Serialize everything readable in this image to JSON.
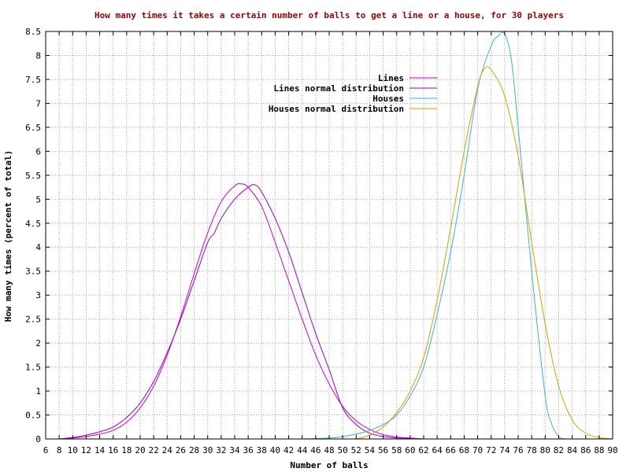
{
  "chart_data": {
    "type": "line",
    "title": "How many times it takes a certain number of balls to get a line or a house, for 30 players",
    "xlabel": "Number of balls",
    "ylabel": "How many times (percent of total)",
    "xlim": [
      6,
      90
    ],
    "ylim": [
      0,
      8.5
    ],
    "xticks": [
      6,
      8,
      10,
      12,
      14,
      16,
      18,
      20,
      22,
      24,
      26,
      28,
      30,
      32,
      34,
      36,
      38,
      40,
      42,
      44,
      46,
      48,
      50,
      52,
      54,
      56,
      58,
      60,
      62,
      64,
      66,
      68,
      70,
      72,
      74,
      76,
      78,
      80,
      82,
      84,
      86,
      88,
      90
    ],
    "yticks": [
      "0",
      "0.5",
      "1",
      "1.5",
      "2",
      "2.5",
      "3",
      "3.5",
      "4",
      "4.5",
      "5",
      "5.5",
      "6",
      "6.5",
      "7",
      "7.5",
      "8",
      "8.5"
    ],
    "grid": true,
    "legend_position": "top-right",
    "colors": {
      "title": "#990000",
      "grid": "#a0a0a0",
      "lines": "#cc00cc",
      "lines_normal": "#9400d3",
      "houses": "#40b0d0",
      "houses_normal": "#d4a000"
    },
    "series": [
      {
        "name": "Lines",
        "color": "#cc00cc",
        "x": [
          8,
          10,
          12,
          14,
          16,
          18,
          20,
          22,
          24,
          26,
          28,
          30,
          32,
          34,
          35,
          36,
          38,
          40,
          42,
          44,
          46,
          48,
          50,
          52,
          54,
          56,
          58,
          60,
          62
        ],
        "y": [
          0,
          0.02,
          0.05,
          0.1,
          0.18,
          0.35,
          0.65,
          1.1,
          1.75,
          2.55,
          3.45,
          4.3,
          4.95,
          5.28,
          5.32,
          5.25,
          4.85,
          4.1,
          3.3,
          2.5,
          1.75,
          1.15,
          0.68,
          0.38,
          0.2,
          0.09,
          0.04,
          0.02,
          0
        ]
      },
      {
        "name": "Lines normal distribution",
        "color": "#9400d3",
        "x": [
          8,
          10,
          12,
          14,
          16,
          18,
          20,
          22,
          24,
          26,
          28,
          30,
          31,
          32,
          34,
          36,
          37,
          38,
          40,
          42,
          44,
          46,
          48,
          50,
          52,
          54,
          56,
          58,
          60,
          62
        ],
        "y": [
          0,
          0.03,
          0.08,
          0.15,
          0.25,
          0.45,
          0.75,
          1.2,
          1.8,
          2.5,
          3.3,
          4.1,
          4.3,
          4.6,
          5.0,
          5.25,
          5.3,
          5.15,
          4.6,
          3.9,
          3.05,
          2.2,
          1.45,
          0.65,
          0.3,
          0.12,
          0.05,
          0.02,
          0.01,
          0
        ]
      },
      {
        "name": "Houses",
        "color": "#40b0d0",
        "x": [
          44,
          48,
          50,
          52,
          54,
          56,
          58,
          60,
          62,
          64,
          66,
          68,
          70,
          72,
          73,
          74,
          75,
          76,
          78,
          80,
          81,
          82,
          83
        ],
        "y": [
          0,
          0.02,
          0.05,
          0.1,
          0.18,
          0.3,
          0.5,
          0.9,
          1.5,
          2.6,
          3.9,
          5.5,
          7.3,
          8.2,
          8.4,
          8.45,
          7.9,
          6.5,
          3.5,
          0.9,
          0.3,
          0.05,
          0
        ]
      },
      {
        "name": "Houses normal distribution",
        "color": "#d4a000",
        "x": [
          52,
          54,
          56,
          58,
          60,
          62,
          64,
          66,
          68,
          70,
          71,
          72,
          74,
          76,
          78,
          80,
          82,
          84,
          86,
          88,
          90
        ],
        "y": [
          0,
          0.08,
          0.25,
          0.55,
          1.0,
          1.7,
          2.9,
          4.4,
          6.0,
          7.35,
          7.72,
          7.7,
          7.15,
          5.9,
          4.1,
          2.4,
          1.1,
          0.4,
          0.12,
          0.03,
          0
        ]
      }
    ]
  }
}
